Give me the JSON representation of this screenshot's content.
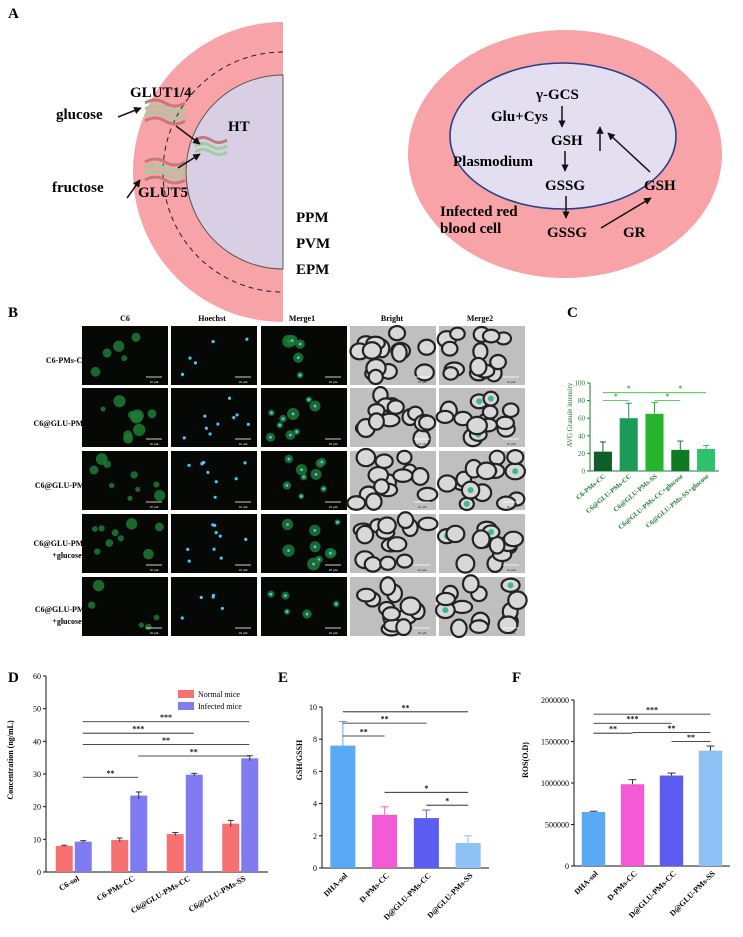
{
  "panelA": {
    "letter": "A",
    "glucose": "glucose",
    "fructose": "fructose",
    "glut14": "GLUT1/4",
    "glut5": "GLUT5",
    "ht": "HT",
    "ppm": "PPM",
    "pvm": "PVM",
    "epm": "EPM",
    "gcs": "γ-GCS",
    "glucys": "Glu+Cys",
    "gsh_in": "GSH",
    "plasmodium": "Plasmodium",
    "gssg_in": "GSSG",
    "gsh_out": "GSH",
    "gssg_out": "GSSG",
    "gr": "GR",
    "infected1": "Infected red",
    "infected2": "blood cell",
    "colors": {
      "rbc": "#f7a3a8",
      "parasite": "#e3def0",
      "parasite_border": "#2a3e8a",
      "host": "#d9cfe5"
    }
  },
  "panelB": {
    "letter": "B",
    "columns": [
      "C6",
      "Hoechst",
      "Merge1",
      "Bright",
      "Merge2"
    ],
    "rows": [
      {
        "l1": "C6-PMs-CC",
        "l2": ""
      },
      {
        "l1": "C6@GLU-PMs-CC",
        "l2": ""
      },
      {
        "l1": "C6@GLU-PMs-SS",
        "l2": ""
      },
      {
        "l1": "C6@GLU-PMs-CC",
        "l2": "+glucose"
      },
      {
        "l1": "C6@GLU-PMs-SS",
        "l2": "+glucose"
      }
    ],
    "scale": "10 μm"
  },
  "panelC": {
    "letter": "C",
    "ylabel": "AVG Granule intensity",
    "sig": "*",
    "chart_data": {
      "type": "bar",
      "categories": [
        "C6-PMs-CC",
        "C6@GLU-PMs-CC",
        "C6@GLU-PMs-SS",
        "C6@GLU-PMs-CC+glucose",
        "C6@GLU-PMs-SS+glucose"
      ],
      "values": [
        22,
        60,
        65,
        24,
        25
      ],
      "errors": [
        11,
        17,
        13,
        10,
        4
      ],
      "ylim": [
        0,
        100
      ],
      "yticks": [
        0,
        20,
        40,
        60,
        80,
        100
      ],
      "colors": [
        "#0f5e2a",
        "#1d9a55",
        "#27b52e",
        "#0f7a23",
        "#2fc26c"
      ]
    }
  },
  "panelD": {
    "letter": "D",
    "ylabel": "Concentration (ng/mL)",
    "legend": [
      "Normal mice",
      "Infected mice"
    ],
    "sig2": "**",
    "sig3": "***",
    "chart_data": {
      "type": "bar",
      "categories": [
        "C6-sol",
        "C6-PMs-CC",
        "C6@GLU-PMs-CC",
        "C6@GLU-PMs-SS"
      ],
      "series": [
        {
          "name": "Normal mice",
          "values": [
            8,
            9.8,
            11.6,
            14.8
          ],
          "errors": [
            0.2,
            0.6,
            0.5,
            1.0
          ],
          "color": "#f87171"
        },
        {
          "name": "Infected mice",
          "values": [
            9.3,
            23.4,
            29.8,
            34.8
          ],
          "errors": [
            0.3,
            1.1,
            0.4,
            0.8
          ],
          "color": "#7f7cf2"
        }
      ],
      "ylim": [
        0,
        60
      ],
      "yticks": [
        0,
        10,
        20,
        30,
        40,
        50,
        60
      ]
    }
  },
  "panelE": {
    "letter": "E",
    "ylabel": "GSH/GSSH",
    "sig1": "*",
    "sig2": "**",
    "chart_data": {
      "type": "bar",
      "categories": [
        "DHA-sol",
        "D-PMs-CC",
        "D@GLU-PMs-CC",
        "D@GLU-PMs-SS"
      ],
      "values": [
        7.6,
        3.3,
        3.1,
        1.55
      ],
      "errors": [
        1.5,
        0.5,
        0.5,
        0.45
      ],
      "ylim": [
        0,
        10
      ],
      "yticks": [
        0,
        2,
        4,
        6,
        8,
        10
      ],
      "colors": [
        "#5aa9f5",
        "#f25bd5",
        "#5b5cf0",
        "#8ec1f5"
      ]
    }
  },
  "panelF": {
    "letter": "F",
    "ylabel": "ROS(O.D)",
    "sig2": "**",
    "sig3": "***",
    "chart_data": {
      "type": "bar",
      "categories": [
        "DHA-sol",
        "D-PMs-CC",
        "D@GLU-PMs-CC",
        "D@GLU-PMs-SS"
      ],
      "values": [
        650000,
        985000,
        1090000,
        1390000
      ],
      "errors": [
        10000,
        55000,
        30000,
        55000
      ],
      "ylim": [
        0,
        2000000
      ],
      "yticks": [
        0,
        500000,
        1000000,
        1500000,
        2000000
      ],
      "colors": [
        "#5aa9f5",
        "#f25bd5",
        "#5b5cf0",
        "#8ec1f5"
      ]
    }
  }
}
